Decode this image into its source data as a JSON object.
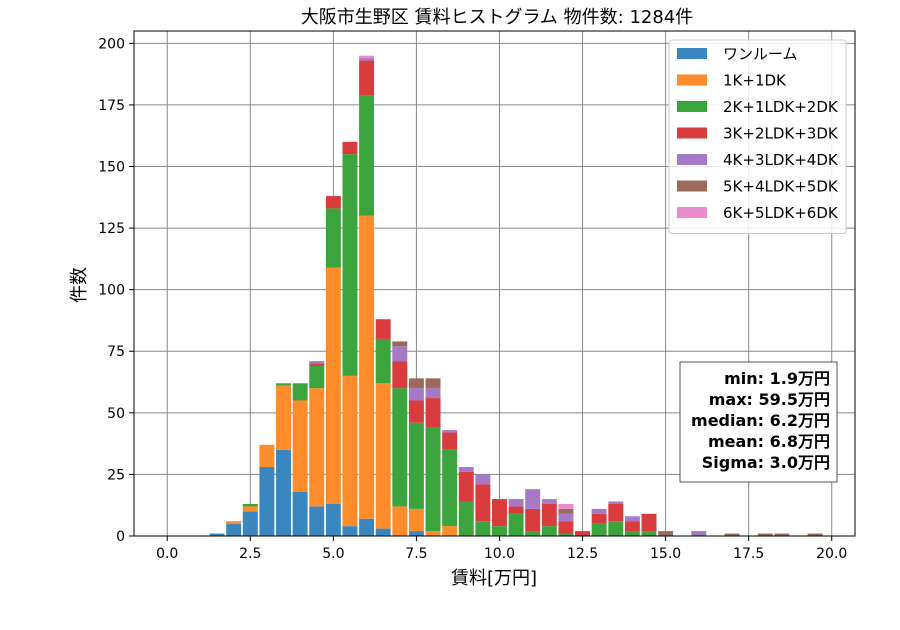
{
  "chart_data": {
    "type": "bar",
    "stacked": true,
    "title": "大阪市生野区 賃料ヒストグラム  物件数: 1284件",
    "xlabel": "賃料[万円]",
    "ylabel": "件数",
    "xlim": [
      -1.0,
      20.7
    ],
    "ylim": [
      0,
      205
    ],
    "xticks": [
      0.0,
      2.5,
      5.0,
      7.5,
      10.0,
      12.5,
      15.0,
      17.5,
      20.0
    ],
    "yticks": [
      0,
      25,
      50,
      75,
      100,
      125,
      150,
      175,
      200
    ],
    "bin_width": 0.5,
    "grid": true,
    "legend_position": "top-right",
    "bins": [
      1.5,
      2.0,
      2.5,
      3.0,
      3.5,
      4.0,
      4.5,
      5.0,
      5.5,
      6.0,
      6.5,
      7.0,
      7.5,
      8.0,
      8.5,
      9.0,
      9.5,
      10.0,
      10.5,
      11.0,
      11.5,
      12.0,
      12.5,
      13.0,
      13.5,
      14.0,
      14.5,
      15.0,
      15.5,
      16.0,
      16.5,
      17.0,
      17.5,
      18.0,
      18.5,
      19.0,
      19.5
    ],
    "series": [
      {
        "name": "ワンルーム",
        "color": "#3a87c0",
        "values": [
          1,
          5,
          10,
          28,
          35,
          18,
          12,
          13,
          4,
          7,
          3,
          0,
          2,
          0,
          0,
          0,
          0,
          0,
          0,
          0,
          0,
          0,
          0,
          0,
          0,
          0,
          0,
          0,
          0,
          0,
          0,
          0,
          0,
          0,
          0,
          0,
          0
        ]
      },
      {
        "name": "1K+1DK",
        "color": "#ff8c2a",
        "values": [
          0,
          1,
          2,
          9,
          26,
          37,
          48,
          96,
          61,
          123,
          59,
          12,
          9,
          2,
          4,
          0,
          0,
          0,
          0,
          0,
          0,
          0,
          0,
          0,
          0,
          0,
          0,
          0,
          0,
          0,
          0,
          0,
          0,
          0,
          0,
          0,
          0
        ]
      },
      {
        "name": "2K+1LDK+2DK",
        "color": "#3ca43c",
        "values": [
          0,
          0,
          1,
          0,
          1,
          7,
          9,
          24,
          90,
          49,
          18,
          48,
          35,
          42,
          31,
          14,
          6,
          4,
          9,
          2,
          4,
          1,
          0,
          5,
          6,
          2,
          2,
          0,
          0,
          0,
          0,
          0,
          0,
          0,
          0,
          0,
          0
        ]
      },
      {
        "name": "3K+2LDK+3DK",
        "color": "#d93c3c",
        "values": [
          0,
          0,
          0,
          0,
          0,
          0,
          1,
          5,
          5,
          14,
          8,
          11,
          9,
          12,
          7,
          12,
          15,
          11,
          3,
          9,
          9,
          5,
          2,
          4,
          7,
          4,
          7,
          0,
          0,
          0,
          0,
          0,
          0,
          0,
          0,
          0,
          0
        ]
      },
      {
        "name": "4K+3LDK+4DK",
        "color": "#a678c8",
        "values": [
          0,
          0,
          0,
          0,
          0,
          0,
          1,
          0,
          0,
          1,
          0,
          6,
          5,
          4,
          1,
          2,
          4,
          0,
          3,
          8,
          2,
          3,
          0,
          2,
          1,
          2,
          0,
          0,
          0,
          2,
          0,
          0,
          0,
          0,
          0,
          0,
          0
        ]
      },
      {
        "name": "5K+4LDK+5DK",
        "color": "#9c6a5a",
        "values": [
          0,
          0,
          0,
          0,
          0,
          0,
          0,
          0,
          0,
          0,
          0,
          2,
          4,
          4,
          0,
          0,
          0,
          0,
          0,
          0,
          0,
          2,
          0,
          0,
          0,
          0,
          0,
          2,
          0,
          0,
          0,
          1,
          0,
          1,
          1,
          0,
          1
        ]
      },
      {
        "name": "6K+5LDK+6DK",
        "color": "#ea8ccc",
        "values": [
          0,
          0,
          0,
          0,
          0,
          0,
          0,
          0,
          0,
          1,
          0,
          0,
          0,
          0,
          0,
          0,
          0,
          0,
          0,
          0,
          0,
          2,
          0,
          0,
          0,
          0,
          0,
          0,
          0,
          0,
          0,
          0,
          0,
          0,
          0,
          0,
          0
        ]
      }
    ],
    "stats": {
      "min": "min: 1.9万円",
      "max": "max: 59.5万円",
      "median": "median: 6.2万円",
      "mean": "mean: 6.8万円",
      "sigma": "Sigma: 3.0万円"
    }
  }
}
